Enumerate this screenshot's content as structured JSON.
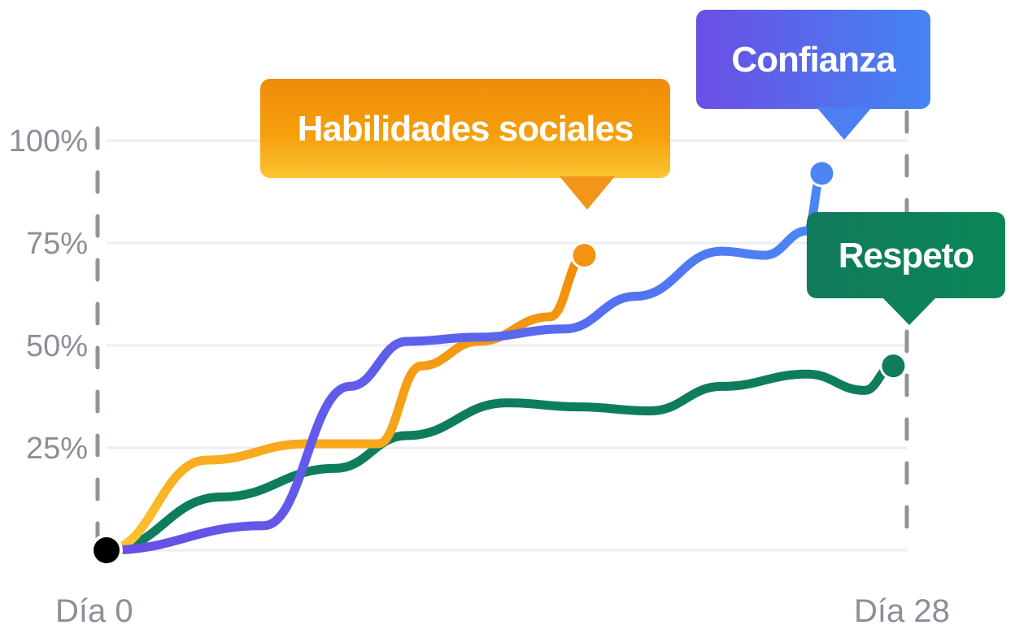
{
  "chart_data": {
    "type": "line",
    "x_start_label": "Día 0",
    "x_end_label": "Día 28",
    "x_range": [
      0,
      28
    ],
    "y_range": [
      0,
      100
    ],
    "y_ticks": [
      "25%",
      "50%",
      "75%",
      "100%"
    ],
    "grid": true,
    "series": [
      {
        "name": "Habilidades sociales",
        "colors": [
          "#fbbf24",
          "#f59e0b",
          "#f08c0a"
        ],
        "points": [
          [
            0,
            0
          ],
          [
            3.5,
            22
          ],
          [
            7,
            26
          ],
          [
            9.5,
            26
          ],
          [
            11,
            45
          ],
          [
            13,
            51
          ],
          [
            15.5,
            57
          ],
          [
            16.7,
            72
          ]
        ]
      },
      {
        "name": "Confianza",
        "colors": [
          "#6d4fe6",
          "#5b6cf0",
          "#4b83f3"
        ],
        "points": [
          [
            0,
            0
          ],
          [
            5.5,
            6
          ],
          [
            8.5,
            40
          ],
          [
            10.5,
            51
          ],
          [
            13,
            52
          ],
          [
            16,
            54
          ],
          [
            18.5,
            62
          ],
          [
            21.5,
            73
          ],
          [
            23,
            72
          ],
          [
            24.5,
            78
          ],
          [
            25,
            92
          ]
        ]
      },
      {
        "name": "Respeto",
        "colors": [
          "#0f7a5c",
          "#0b7f5a",
          "#0e8a63"
        ],
        "points": [
          [
            0,
            0
          ],
          [
            4,
            13
          ],
          [
            8,
            20
          ],
          [
            10.5,
            28
          ],
          [
            14,
            36
          ],
          [
            16.5,
            35
          ],
          [
            19,
            34
          ],
          [
            21.5,
            40
          ],
          [
            24.5,
            43
          ],
          [
            26.5,
            39
          ],
          [
            27.5,
            45
          ]
        ]
      }
    ]
  }
}
